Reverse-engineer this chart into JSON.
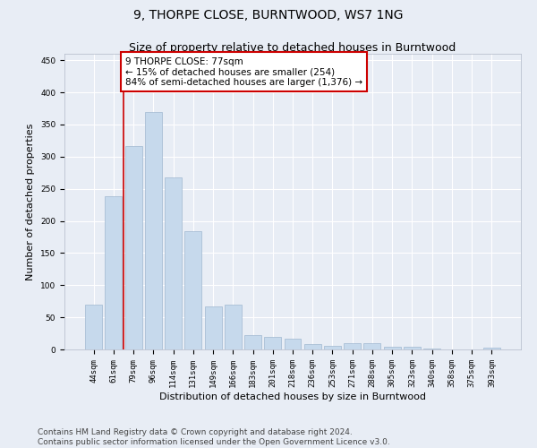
{
  "title": "9, THORPE CLOSE, BURNTWOOD, WS7 1NG",
  "subtitle": "Size of property relative to detached houses in Burntwood",
  "xlabel": "Distribution of detached houses by size in Burntwood",
  "ylabel": "Number of detached properties",
  "categories": [
    "44sqm",
    "61sqm",
    "79sqm",
    "96sqm",
    "114sqm",
    "131sqm",
    "149sqm",
    "166sqm",
    "183sqm",
    "201sqm",
    "218sqm",
    "236sqm",
    "253sqm",
    "271sqm",
    "288sqm",
    "305sqm",
    "323sqm",
    "340sqm",
    "358sqm",
    "375sqm",
    "393sqm"
  ],
  "values": [
    70,
    238,
    317,
    370,
    268,
    184,
    67,
    70,
    22,
    20,
    17,
    8,
    6,
    10,
    10,
    4,
    4,
    2,
    0,
    0,
    3
  ],
  "bar_color": "#c6d9ec",
  "bar_edge_color": "#a0b8d0",
  "bg_color": "#e8edf5",
  "grid_color": "#ffffff",
  "annotation_line_label": "9 THORPE CLOSE: 77sqm",
  "annotation_text1": "← 15% of detached houses are smaller (254)",
  "annotation_text2": "84% of semi-detached houses are larger (1,376) →",
  "annotation_box_color": "#ffffff",
  "annotation_box_edge": "#cc0000",
  "vline_color": "#cc0000",
  "vline_x": 1.5,
  "ylim": [
    0,
    460
  ],
  "yticks": [
    0,
    50,
    100,
    150,
    200,
    250,
    300,
    350,
    400,
    450
  ],
  "footer1": "Contains HM Land Registry data © Crown copyright and database right 2024.",
  "footer2": "Contains public sector information licensed under the Open Government Licence v3.0.",
  "title_fontsize": 10,
  "subtitle_fontsize": 9,
  "xlabel_fontsize": 8,
  "ylabel_fontsize": 8,
  "tick_fontsize": 6.5,
  "footer_fontsize": 6.5,
  "ann_fontsize": 7.5
}
